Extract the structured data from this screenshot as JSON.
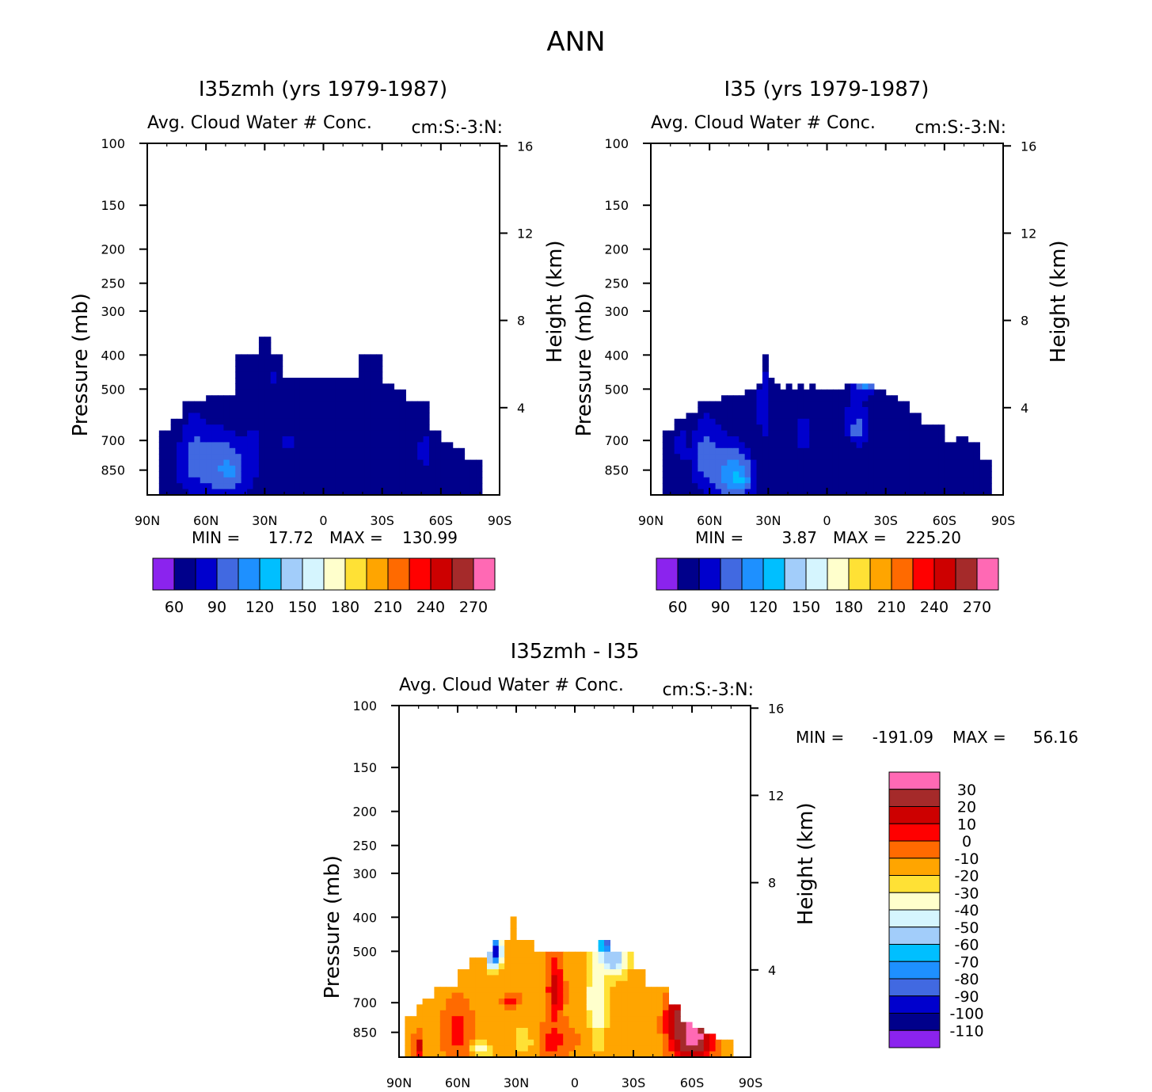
{
  "page": {
    "title": "ANN"
  },
  "palettes": {
    "abs": [
      "#8b23ee",
      "#00008b",
      "#0000cd",
      "#4169e1",
      "#1e90ff",
      "#00bfff",
      "#a2cdfa",
      "#d5f5fe",
      "#ffffcc",
      "#ffe135",
      "#ffa500",
      "#ff6a00",
      "#ff0000",
      "#cd0000",
      "#a52a2a",
      "#ff69b4"
    ],
    "diff": [
      "#8b23ee",
      "#00008b",
      "#0000cd",
      "#4169e1",
      "#1e90ff",
      "#00bfff",
      "#a2cdfa",
      "#d5f5fe",
      "#ffffcc",
      "#ffe135",
      "#ffa500",
      "#ff6a00",
      "#ff0000",
      "#cd0000",
      "#a52a2a",
      "#ff69b4"
    ]
  },
  "chart_data": [
    {
      "type": "heatmap",
      "title": "I35zmh (yrs 1979-1987)",
      "subtitle_left": "Avg. Cloud Water # Conc.",
      "subtitle_right": "cm:S:-3:N:",
      "xlabel": "",
      "ylabel": "Pressure (mb)",
      "ylabel_right": "Height (km)",
      "x_ticks": [
        "90N",
        "60N",
        "30N",
        "0",
        "30S",
        "60S",
        "90S"
      ],
      "y_ticks": [
        100,
        150,
        200,
        250,
        300,
        400,
        500,
        700,
        850
      ],
      "y_right_ticks": [
        16,
        12,
        8,
        4
      ],
      "ylim": [
        100,
        1000
      ],
      "y_scale": "log",
      "min_label": "MIN =",
      "min_value": "17.72",
      "max_label": "MAX =",
      "max_value": "130.99",
      "colorbar_labels": [
        "60",
        "90",
        "120",
        "150",
        "180",
        "210",
        "240",
        "270"
      ],
      "palette": "abs",
      "levels": [
        30,
        60,
        90,
        120,
        150,
        180,
        210,
        240,
        270
      ],
      "fields": [
        {
          "type": "pressure_band",
          "bottom": 1000,
          "top_by_lat": [
            [
              -88,
              1000
            ],
            [
              -84,
              660
            ],
            [
              -78,
              615
            ],
            [
              -72,
              550
            ],
            [
              -66,
              550
            ],
            [
              -60,
              525
            ],
            [
              -54,
              525
            ],
            [
              -48,
              525
            ],
            [
              -45,
              400
            ],
            [
              -33,
              360
            ],
            [
              -27,
              400
            ],
            [
              -21,
              465
            ],
            [
              -15,
              465
            ],
            [
              15,
              465
            ],
            [
              18,
              400
            ],
            [
              24,
              400
            ],
            [
              30,
              480
            ],
            [
              36,
              500
            ],
            [
              42,
              550
            ],
            [
              48,
              550
            ],
            [
              54,
              650
            ],
            [
              60,
              700
            ],
            [
              66,
              740
            ],
            [
              72,
              790
            ],
            [
              78,
              790
            ],
            [
              82,
              1000
            ]
          ],
          "value": 35
        },
        {
          "type": "blob",
          "lat": -72,
          "p": 820,
          "dlat": 6,
          "dp": 120,
          "value": 65
        },
        {
          "type": "blob",
          "lat": -66,
          "p": 780,
          "dlat": 8,
          "dp": 220,
          "value": 100
        },
        {
          "type": "blob",
          "lat": -55,
          "p": 820,
          "dlat": 14,
          "dp": 190,
          "value": 105
        },
        {
          "type": "blob",
          "lat": -48,
          "p": 850,
          "dlat": 12,
          "dp": 160,
          "value": 125
        },
        {
          "type": "blob",
          "lat": -36,
          "p": 760,
          "dlat": 7,
          "dp": 200,
          "value": 70
        },
        {
          "type": "blob",
          "lat": -18,
          "p": 700,
          "dlat": 9,
          "dp": 80,
          "value": 65
        },
        {
          "type": "blob",
          "lat": 52,
          "p": 760,
          "dlat": 7,
          "dp": 140,
          "value": 70
        },
        {
          "type": "blob",
          "lat": -25,
          "p": 460,
          "dlat": 3,
          "dp": 60,
          "value": 65
        }
      ]
    },
    {
      "type": "heatmap",
      "title": "I35 (yrs 1979-1987)",
      "subtitle_left": "Avg. Cloud Water # Conc.",
      "subtitle_right": "cm:S:-3:N:",
      "xlabel": "",
      "ylabel": "Pressure (mb)",
      "ylabel_right": "Height (km)",
      "x_ticks": [
        "90N",
        "60N",
        "30N",
        "0",
        "30S",
        "60S",
        "90S"
      ],
      "y_ticks": [
        100,
        150,
        200,
        250,
        300,
        400,
        500,
        700,
        850
      ],
      "y_right_ticks": [
        16,
        12,
        8,
        4
      ],
      "ylim": [
        100,
        1000
      ],
      "y_scale": "log",
      "min_label": "MIN =",
      "min_value": "3.87",
      "max_label": "MAX =",
      "max_value": "225.20",
      "colorbar_labels": [
        "60",
        "90",
        "120",
        "150",
        "180",
        "210",
        "240",
        "270"
      ],
      "palette": "abs",
      "levels": [
        30,
        60,
        90,
        120,
        150,
        180,
        210,
        240,
        270
      ],
      "fields": [
        {
          "type": "pressure_band",
          "bottom": 1000,
          "top_by_lat": [
            [
              -88,
              1000
            ],
            [
              -84,
              660
            ],
            [
              -78,
              615
            ],
            [
              -72,
              580
            ],
            [
              -66,
              550
            ],
            [
              -60,
              550
            ],
            [
              -54,
              525
            ],
            [
              -48,
              525
            ],
            [
              -42,
              500
            ],
            [
              -36,
              480
            ],
            [
              -33,
              400
            ],
            [
              -30,
              470
            ],
            [
              -27,
              480
            ],
            [
              -24,
              500
            ],
            [
              -21,
              480
            ],
            [
              -18,
              500
            ],
            [
              -15,
              480
            ],
            [
              -12,
              500
            ],
            [
              -9,
              480
            ],
            [
              -6,
              500
            ],
            [
              3,
              500
            ],
            [
              9,
              480
            ],
            [
              15,
              480
            ],
            [
              24,
              500
            ],
            [
              30,
              525
            ],
            [
              36,
              550
            ],
            [
              42,
              575
            ],
            [
              48,
              640
            ],
            [
              54,
              640
            ],
            [
              60,
              700
            ],
            [
              66,
              680
            ],
            [
              72,
              700
            ],
            [
              78,
              780
            ],
            [
              84,
              1000
            ]
          ],
          "value": 35
        },
        {
          "type": "blob",
          "lat": -75,
          "p": 720,
          "dlat": 5,
          "dp": 180,
          "value": 65
        },
        {
          "type": "blob",
          "lat": -62,
          "p": 780,
          "dlat": 9,
          "dp": 230,
          "value": 100
        },
        {
          "type": "blob",
          "lat": -50,
          "p": 860,
          "dlat": 12,
          "dp": 180,
          "value": 125
        },
        {
          "type": "blob",
          "lat": -45,
          "p": 900,
          "dlat": 8,
          "dp": 120,
          "value": 155
        },
        {
          "type": "blob",
          "lat": -32,
          "p": 560,
          "dlat": 8,
          "dp": 320,
          "value": 65
        },
        {
          "type": "blob",
          "lat": -12,
          "p": 660,
          "dlat": 7,
          "dp": 220,
          "value": 65
        },
        {
          "type": "blob",
          "lat": 15,
          "p": 620,
          "dlat": 9,
          "dp": 140,
          "value": 75
        },
        {
          "type": "blob",
          "lat": 16,
          "p": 650,
          "dlat": 5,
          "dp": 60,
          "value": 105
        },
        {
          "type": "blob",
          "lat": 18,
          "p": 470,
          "dlat": 7,
          "dp": 60,
          "value": 110
        },
        {
          "type": "blob",
          "lat": 20,
          "p": 465,
          "dlat": 4,
          "dp": 30,
          "value": 190
        },
        {
          "type": "blob",
          "lat": -40,
          "p": 470,
          "dlat": 2,
          "dp": 20,
          "value": 190
        }
      ]
    },
    {
      "type": "heatmap",
      "title": "I35zmh - I35",
      "subtitle_left": "Avg. Cloud Water # Conc.",
      "subtitle_right": "cm:S:-3:N:",
      "xlabel": "",
      "ylabel": "Pressure (mb)",
      "ylabel_right": "Height (km)",
      "x_ticks": [
        "90N",
        "60N",
        "30N",
        "0",
        "30S",
        "60S",
        "90S"
      ],
      "y_ticks": [
        100,
        150,
        200,
        250,
        300,
        400,
        500,
        700,
        850
      ],
      "y_right_ticks": [
        16,
        12,
        8,
        4
      ],
      "ylim": [
        100,
        1000
      ],
      "y_scale": "log",
      "min_label": "MIN =",
      "min_value": "-191.09",
      "max_label": "MAX =",
      "max_value": "56.16",
      "colorbar_labels": [
        "30",
        "20",
        "10",
        "0",
        "-10",
        "-20",
        "-30",
        "-40",
        "-50",
        "-60",
        "-70",
        "-80",
        "-90",
        "-100",
        "-110"
      ],
      "palette": "diff",
      "levels": [
        -110,
        -100,
        -90,
        -80,
        -70,
        -60,
        -50,
        -40,
        -30,
        -20,
        -10,
        0,
        10,
        20,
        30
      ],
      "fields": [
        {
          "type": "pressure_band",
          "bottom": 1000,
          "top_by_lat": [
            [
              -88,
              1000
            ],
            [
              -86,
              760
            ],
            [
              -81,
              720
            ],
            [
              -78,
              675
            ],
            [
              -72,
              640
            ],
            [
              -66,
              640
            ],
            [
              -60,
              565
            ],
            [
              -54,
              525
            ],
            [
              -48,
              525
            ],
            [
              -45,
              500
            ],
            [
              -42,
              460
            ],
            [
              -36,
              460
            ],
            [
              -33,
              400
            ],
            [
              -30,
              460
            ],
            [
              -27,
              460
            ],
            [
              -21,
              500
            ],
            [
              9,
              500
            ],
            [
              12,
              460
            ],
            [
              15,
              460
            ],
            [
              18,
              500
            ],
            [
              24,
              500
            ],
            [
              30,
              570
            ],
            [
              36,
              640
            ],
            [
              48,
              700
            ],
            [
              54,
              780
            ],
            [
              60,
              820
            ],
            [
              66,
              860
            ],
            [
              72,
              880
            ],
            [
              78,
              900
            ],
            [
              82,
              1000
            ]
          ],
          "value": -15
        },
        {
          "type": "blob",
          "lat": -60,
          "p": 850,
          "dlat": 9,
          "dp": 200,
          "value": 5
        },
        {
          "type": "blob",
          "lat": -32,
          "p": 690,
          "dlat": 6,
          "dp": 40,
          "value": 5
        },
        {
          "type": "blob",
          "lat": -10,
          "p": 650,
          "dlat": 5,
          "dp": 180,
          "value": 15
        },
        {
          "type": "blob",
          "lat": -12,
          "p": 900,
          "dlat": 14,
          "dp": 120,
          "value": 5
        },
        {
          "type": "blob",
          "lat": -26,
          "p": 900,
          "dlat": 8,
          "dp": 120,
          "value": -25
        },
        {
          "type": "blob",
          "lat": -48,
          "p": 950,
          "dlat": 6,
          "dp": 60,
          "value": -35
        },
        {
          "type": "blob",
          "lat": -80,
          "p": 930,
          "dlat": 3,
          "dp": 80,
          "value": 15
        },
        {
          "type": "blob",
          "lat": 10,
          "p": 680,
          "dlat": 3,
          "dp": 120,
          "value": -55
        },
        {
          "type": "blob",
          "lat": 12,
          "p": 720,
          "dlat": 5,
          "dp": 260,
          "value": -35
        },
        {
          "type": "blob",
          "lat": 60,
          "p": 870,
          "dlat": 12,
          "dp": 190,
          "value": 40
        },
        {
          "type": "blob",
          "lat": 52,
          "p": 780,
          "dlat": 6,
          "dp": 130,
          "value": 25
        },
        {
          "type": "blob",
          "lat": 17,
          "p": 480,
          "dlat": 5,
          "dp": 40,
          "value": -110
        },
        {
          "type": "blob",
          "lat": 20,
          "p": 520,
          "dlat": 8,
          "dp": 80,
          "value": -60
        },
        {
          "type": "blob",
          "lat": -40,
          "p": 500,
          "dlat": 3,
          "dp": 60,
          "value": -100
        },
        {
          "type": "blob",
          "lat": -44,
          "p": 520,
          "dlat": 2,
          "dp": 50,
          "value": -60
        }
      ]
    }
  ]
}
